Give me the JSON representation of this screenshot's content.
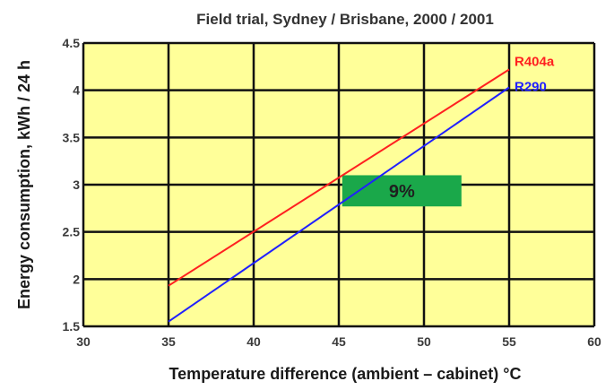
{
  "chart_data": {
    "type": "line",
    "title": "Field trial, Sydney / Brisbane, 2000 / 2001",
    "xlabel": "Temperature difference (ambient – cabinet) °C",
    "ylabel": "Energy consumption, kWh / 24 h",
    "xlim": [
      30,
      60
    ],
    "ylim": [
      1.5,
      4.5
    ],
    "x_ticks": [
      30,
      35,
      40,
      45,
      50,
      55,
      60
    ],
    "x_tick_labels": [
      "30",
      "35",
      "40",
      "45",
      "50",
      "55",
      "60"
    ],
    "y_ticks": [
      1.5,
      2,
      2.5,
      3,
      3.5,
      4,
      4.5
    ],
    "y_tick_labels": [
      "1.5",
      "2",
      "2.5",
      "3",
      "3.5",
      "4",
      "4.5"
    ],
    "grid": true,
    "series": [
      {
        "name": "R404a",
        "x": [
          35,
          55
        ],
        "y": [
          1.93,
          4.22
        ],
        "color": "#ff2020"
      },
      {
        "name": "R290",
        "x": [
          35,
          55
        ],
        "y": [
          1.55,
          4.03
        ],
        "color": "#2020ff"
      }
    ],
    "annotation": {
      "text": "9%",
      "x_range": [
        45.2,
        52.2
      ],
      "y_range": [
        2.77,
        3.1
      ],
      "color": "#1aa84a"
    }
  },
  "colors": {
    "plot_background": "#ffff99",
    "grid": "#111111"
  }
}
